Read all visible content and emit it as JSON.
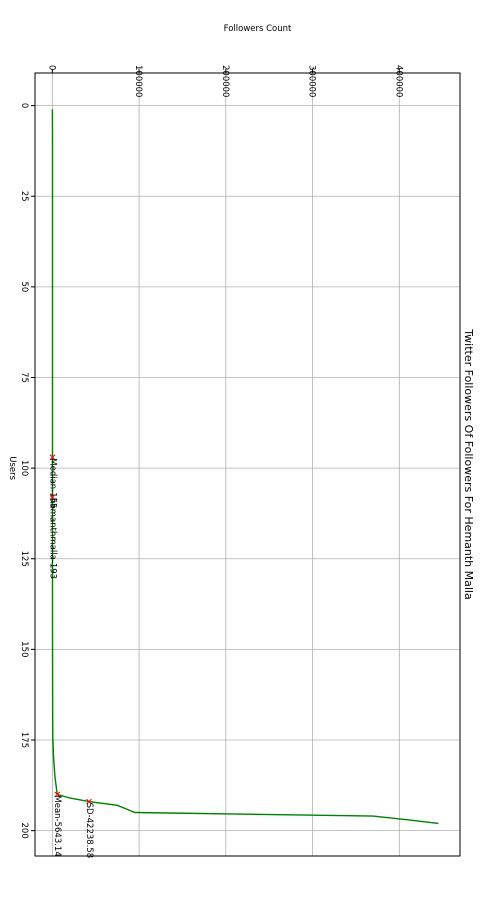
{
  "chart_data": {
    "type": "line",
    "orientation": "rotated-90-clockwise",
    "title": "Twitter Followers Of Followers For Hemanth Malla",
    "xlabel": "Users",
    "ylabel": "Followers Count",
    "xlim": [
      -9,
      207
    ],
    "ylim": [
      -20000,
      470000
    ],
    "x_ticks": [
      0,
      25,
      50,
      75,
      100,
      125,
      150,
      175,
      200
    ],
    "y_ticks": [
      0,
      100000,
      200000,
      300000,
      400000
    ],
    "grid": true,
    "line_color": "#008000",
    "marker_color": "#ff0000",
    "series": [
      {
        "points": [
          [
            1,
            100
          ],
          [
            10,
            120
          ],
          [
            20,
            130
          ],
          [
            40,
            140
          ],
          [
            60,
            150
          ],
          [
            80,
            150
          ],
          [
            97,
            155
          ],
          [
            108,
            193
          ],
          [
            120,
            200
          ],
          [
            140,
            220
          ],
          [
            160,
            250
          ],
          [
            170,
            350
          ],
          [
            175,
            600
          ],
          [
            180,
            1500
          ],
          [
            185,
            3000
          ],
          [
            190,
            5643
          ],
          [
            191,
            20000
          ],
          [
            192,
            42238
          ],
          [
            193,
            75000
          ],
          [
            194,
            85000
          ],
          [
            195,
            95000
          ],
          [
            196,
            370000
          ],
          [
            197,
            410000
          ],
          [
            198,
            445000
          ]
        ]
      }
    ],
    "annotations": [
      {
        "x": 97,
        "y": 155,
        "label": "Median-155"
      },
      {
        "x": 108,
        "y": 193,
        "label": "hemanthmalla-193"
      },
      {
        "x": 190,
        "y": 5643,
        "label": "Mean-5643.14"
      },
      {
        "x": 192,
        "y": 42238,
        "label": "SD-42238.58"
      }
    ]
  }
}
